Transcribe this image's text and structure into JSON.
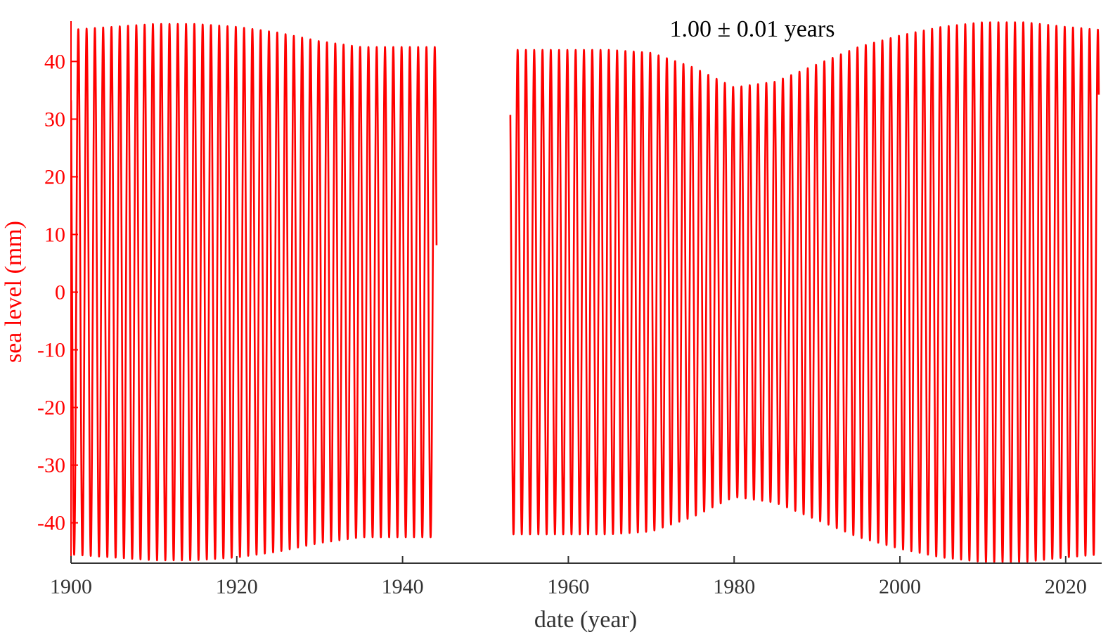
{
  "chart_data": {
    "type": "line",
    "annotation": "1.00 ± 0.01 years",
    "xlabel": "date (year)",
    "ylabel": "sea level (mm)",
    "xlim": [
      1900,
      2024
    ],
    "ylim": [
      -47,
      47
    ],
    "xticks": [
      1900,
      1920,
      1940,
      1960,
      1980,
      2000,
      2020
    ],
    "yticks": [
      -40,
      -30,
      -20,
      -10,
      0,
      10,
      20,
      30,
      40
    ],
    "grid": false,
    "legend": "none",
    "colors": {
      "series": "#ff0000",
      "ylabel": "#ff0000",
      "yticks": "#ff0000",
      "xaxis": "#333333",
      "annotation": "#000000"
    },
    "series": [
      {
        "period_years": 1.0,
        "amplitude_envelope": {
          "x": [
            1900,
            1905,
            1910,
            1915,
            1920,
            1925,
            1930,
            1935,
            1940,
            1944,
            1953,
            1958,
            1965,
            1970,
            1975,
            1980,
            1985,
            1990,
            1995,
            2000,
            2005,
            2010,
            2015,
            2020,
            2024
          ],
          "amplitude": [
            45.5,
            46.0,
            46.5,
            46.5,
            46.0,
            45.0,
            43.5,
            42.5,
            42.5,
            42.5,
            42.0,
            42.0,
            42.0,
            41.5,
            39.0,
            35.5,
            36.5,
            39.5,
            42.5,
            44.5,
            46.0,
            46.8,
            46.8,
            46.0,
            45.5
          ]
        },
        "segments": [
          [
            1900,
            1944.1
          ],
          [
            1953.0,
            2024
          ]
        ]
      }
    ]
  }
}
